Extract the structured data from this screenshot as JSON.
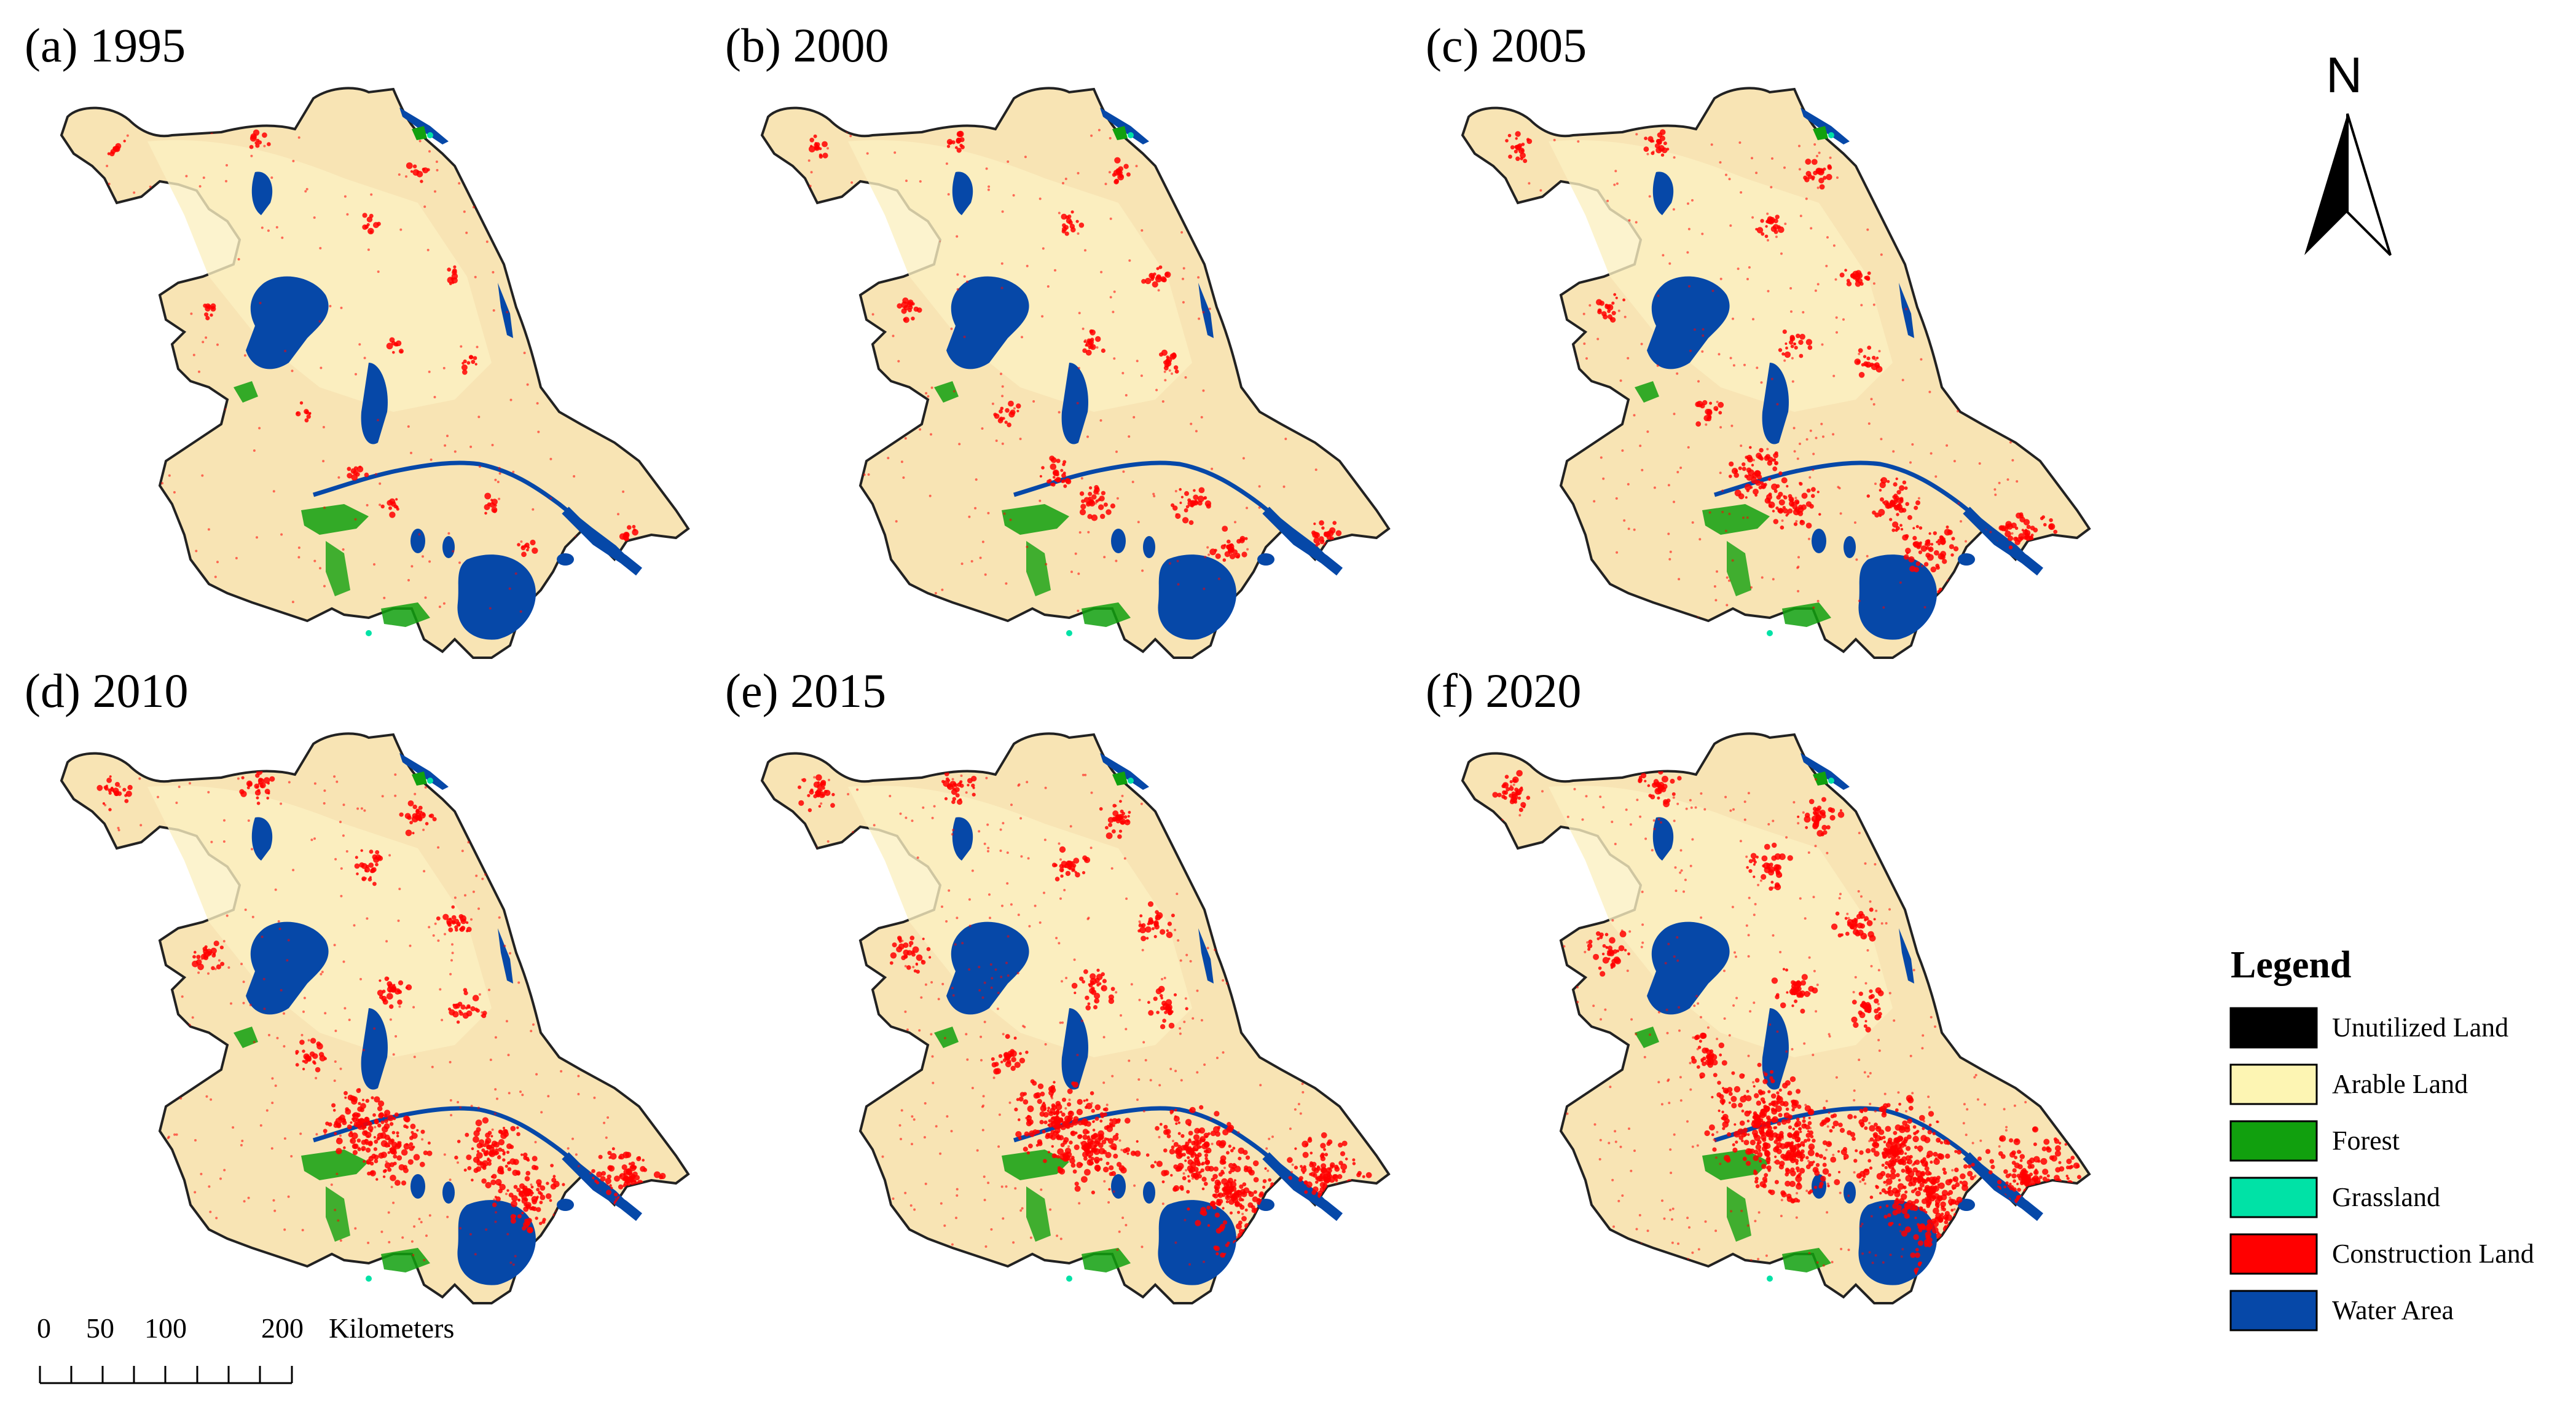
{
  "panels": [
    {
      "title": "(a) 1995",
      "year": 1995
    },
    {
      "title": "(b) 2000",
      "year": 2000
    },
    {
      "title": "(c) 2005",
      "year": 2005
    },
    {
      "title": "(d) 2010",
      "year": 2010
    },
    {
      "title": "(e) 2015",
      "year": 2015
    },
    {
      "title": "(f) 2020",
      "year": 2020
    }
  ],
  "legend": {
    "title": "Legend",
    "items": [
      {
        "label": "Unutilized Land",
        "color": "#000000"
      },
      {
        "label": "Arable Land",
        "color": "#fdf5b3"
      },
      {
        "label": "Forest",
        "color": "#11a00e"
      },
      {
        "label": "Grassland",
        "color": "#00e2a6"
      },
      {
        "label": "Construction Land",
        "color": "#ff0000"
      },
      {
        "label": "Water Area",
        "color": "#0648a8"
      }
    ]
  },
  "north_arrow": {
    "label": "N"
  },
  "scale_bar": {
    "labels": [
      "0",
      "50",
      "100",
      "200"
    ],
    "unit": "Kilometers"
  },
  "colors": {
    "map_base": "#f8e4b4",
    "boundary": "#222222"
  }
}
